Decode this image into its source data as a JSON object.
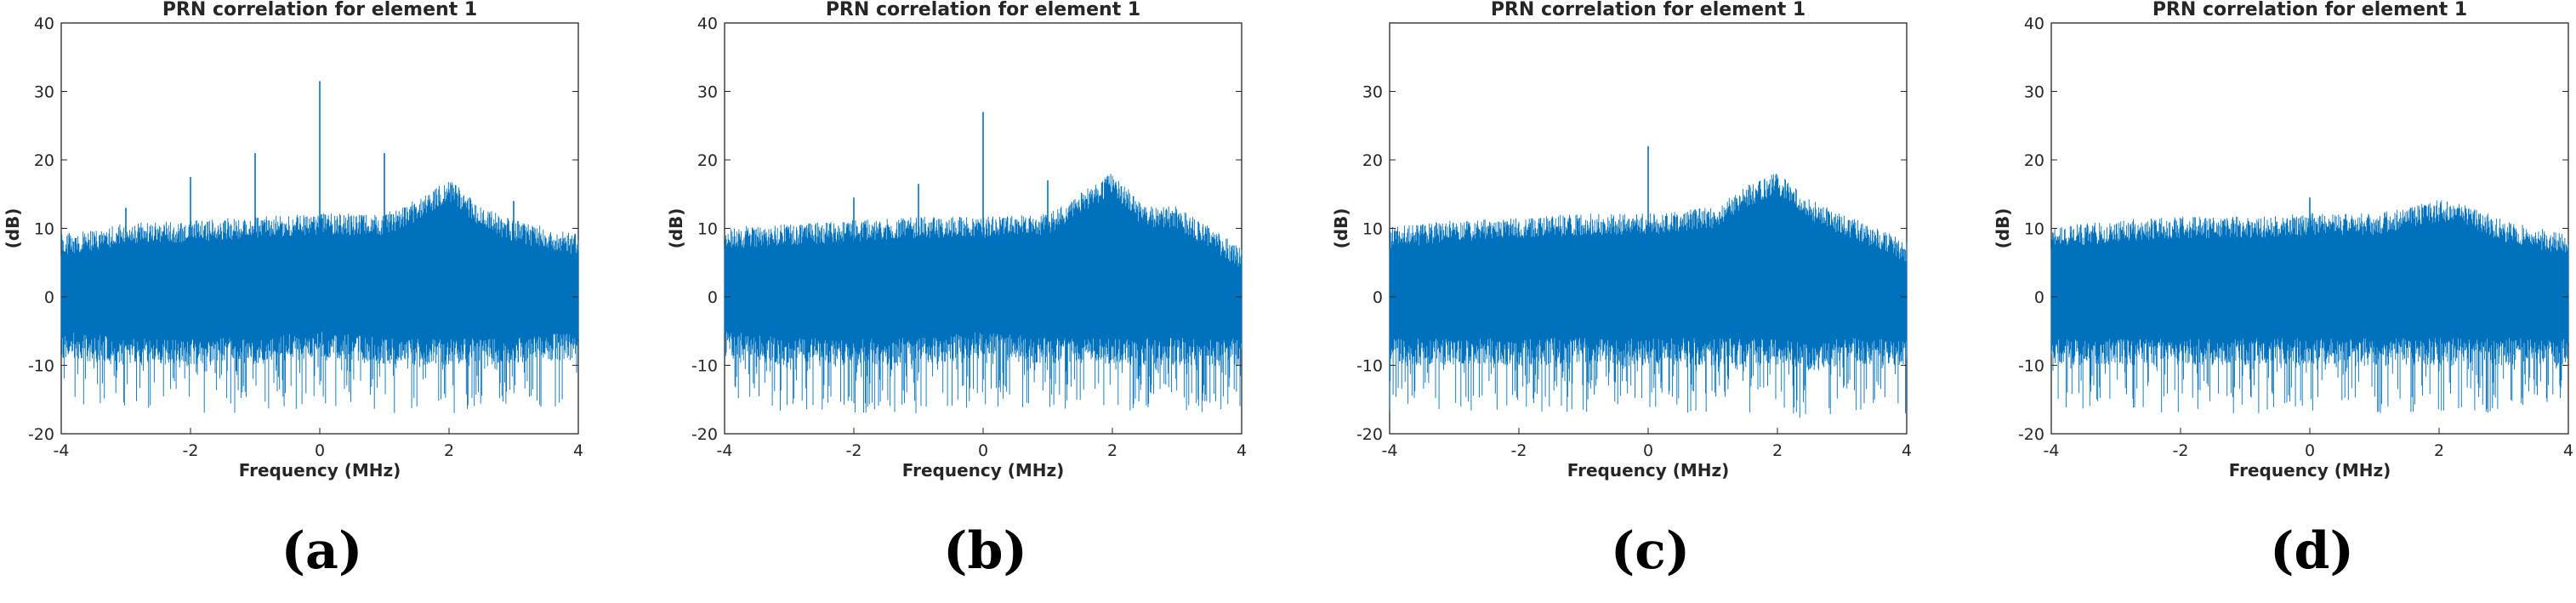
{
  "colors": {
    "series": "#0072BD",
    "axis": "#262626",
    "background": "#ffffff"
  },
  "chart_data": [
    {
      "panel": "(a)",
      "type": "line",
      "title": "PRN correlation for element 1",
      "xlabel": "Frequency (MHz)",
      "ylabel": "(dB)",
      "xlim": [
        -4,
        4
      ],
      "ylim": [
        -20,
        40
      ],
      "xticks": [
        -4,
        -2,
        0,
        2,
        4
      ],
      "yticks": [
        -20,
        -10,
        0,
        10,
        20,
        30,
        40
      ],
      "grid": false,
      "series": [
        {
          "envelope_x": [
            -4,
            -3,
            -2,
            -1,
            0,
            1,
            1.5,
            2,
            2.5,
            3,
            4
          ],
          "upper": [
            8,
            9.5,
            10,
            10.5,
            11,
            11,
            13,
            16,
            12,
            10,
            8
          ],
          "lower": [
            -8,
            -9,
            -9,
            -9,
            -8,
            -9,
            -9,
            -9,
            -9,
            -9,
            -8
          ],
          "spikes": [
            {
              "x": -3,
              "y": 13
            },
            {
              "x": -2,
              "y": 17.5
            },
            {
              "x": -1,
              "y": 21
            },
            {
              "x": 0,
              "y": 31.5
            },
            {
              "x": 1,
              "y": 21
            },
            {
              "x": 3,
              "y": 14
            }
          ]
        }
      ]
    },
    {
      "panel": "(b)",
      "type": "line",
      "title": "PRN correlation for element 1",
      "xlabel": "Frequency (MHz)",
      "ylabel": "(dB)",
      "xlim": [
        -4,
        4
      ],
      "ylim": [
        -20,
        40
      ],
      "xticks": [
        -4,
        -2,
        0,
        2,
        4
      ],
      "yticks": [
        -20,
        -10,
        0,
        10,
        20,
        30,
        40
      ],
      "grid": false,
      "series": [
        {
          "envelope_x": [
            -4,
            -3,
            -2,
            -1,
            0,
            1,
            1.5,
            2,
            2.5,
            3,
            4
          ],
          "upper": [
            9,
            9.5,
            10,
            10.5,
            10.5,
            11,
            14,
            17,
            12,
            12,
            6
          ],
          "lower": [
            -8,
            -9,
            -9,
            -9,
            -8,
            -9,
            -9,
            -9,
            -9,
            -9,
            -9
          ],
          "spikes": [
            {
              "x": -2,
              "y": 14.5
            },
            {
              "x": -1,
              "y": 16.5
            },
            {
              "x": 0,
              "y": 27
            },
            {
              "x": 1,
              "y": 17
            }
          ]
        }
      ]
    },
    {
      "panel": "(c)",
      "type": "line",
      "title": "PRN correlation for element 1",
      "xlabel": "Frequency (MHz)",
      "ylabel": "(dB)",
      "xlim": [
        -4,
        4
      ],
      "ylim": [
        -20,
        40
      ],
      "xticks": [
        -4,
        -2,
        0,
        2,
        4
      ],
      "yticks": [
        -20,
        -10,
        0,
        10,
        20,
        30
      ],
      "grid": false,
      "series": [
        {
          "envelope_x": [
            -4,
            -3,
            -2,
            -1,
            0,
            1,
            1.5,
            2,
            2.5,
            3,
            4
          ],
          "upper": [
            9,
            10,
            10.5,
            11,
            11,
            12,
            15,
            17,
            13,
            11,
            7
          ],
          "lower": [
            -9,
            -9,
            -9,
            -9,
            -9,
            -9,
            -9,
            -9,
            -10,
            -9,
            -9
          ],
          "spikes": [
            {
              "x": 0,
              "y": 22
            }
          ]
        }
      ]
    },
    {
      "panel": "(d)",
      "type": "line",
      "title": "PRN correlation for element 1",
      "xlabel": "Frequency (MHz)",
      "ylabel": "(dB)",
      "xlim": [
        -4,
        4
      ],
      "ylim": [
        -20,
        40
      ],
      "xticks": [
        -4,
        -2,
        0,
        2,
        4
      ],
      "yticks": [
        -20,
        -10,
        0,
        10,
        20,
        30,
        40
      ],
      "grid": false,
      "series": [
        {
          "envelope_x": [
            -4,
            -3,
            -2,
            -1,
            0,
            1,
            1.5,
            2,
            2.5,
            3,
            4
          ],
          "upper": [
            9,
            10,
            10.5,
            10.5,
            11,
            11,
            12,
            13,
            12,
            10,
            8
          ],
          "lower": [
            -9,
            -9,
            -9,
            -9,
            -9,
            -9,
            -9,
            -9,
            -9,
            -9,
            -9
          ],
          "spikes": [
            {
              "x": 0,
              "y": 14.5
            }
          ]
        }
      ]
    }
  ]
}
